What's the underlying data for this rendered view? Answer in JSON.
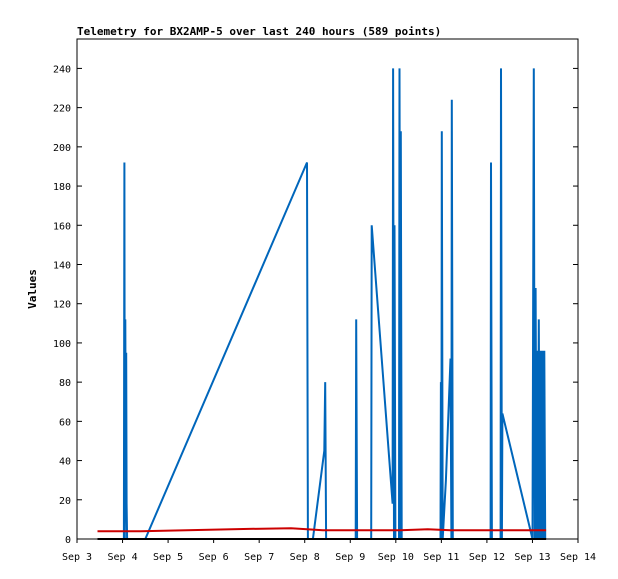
{
  "chart_data": {
    "type": "line",
    "title": "Telemetry for BX2AMP-5 over last 240 hours (589 points)",
    "xlabel": "",
    "ylabel": "Values",
    "xlim": [
      3.0,
      14.0
    ],
    "ylim": [
      0,
      255
    ],
    "x_unit": "day of September",
    "x_ticks": [
      {
        "value": 3,
        "label": "Sep 3"
      },
      {
        "value": 4,
        "label": "Sep 4"
      },
      {
        "value": 5,
        "label": "Sep 5"
      },
      {
        "value": 6,
        "label": "Sep 6"
      },
      {
        "value": 7,
        "label": "Sep 7"
      },
      {
        "value": 8,
        "label": "Sep 8"
      },
      {
        "value": 9,
        "label": "Sep 9"
      },
      {
        "value": 10,
        "label": "Sep 10"
      },
      {
        "value": 11,
        "label": "Sep 11"
      },
      {
        "value": 12,
        "label": "Sep 12"
      },
      {
        "value": 13,
        "label": "Sep 13"
      },
      {
        "value": 14,
        "label": "Sep 14"
      }
    ],
    "y_ticks": [
      0,
      20,
      40,
      60,
      80,
      100,
      120,
      140,
      160,
      180,
      200,
      220,
      240
    ],
    "legend": "none",
    "series": [
      {
        "color": "#0066bb",
        "points": [
          [
            4.03,
            0
          ],
          [
            4.04,
            192
          ],
          [
            4.05,
            0
          ],
          [
            4.06,
            112
          ],
          [
            4.07,
            55
          ],
          [
            4.08,
            95
          ],
          [
            4.09,
            18
          ],
          [
            4.1,
            0
          ],
          [
            4.5,
            0
          ],
          [
            8.05,
            192
          ],
          [
            8.07,
            0
          ],
          [
            8.18,
            0
          ],
          [
            8.43,
            45
          ],
          [
            8.45,
            80
          ],
          [
            8.47,
            0
          ],
          [
            9.12,
            0
          ],
          [
            9.13,
            112
          ],
          [
            9.15,
            0
          ],
          [
            9.46,
            0
          ],
          [
            9.47,
            160
          ],
          [
            9.93,
            18
          ],
          [
            9.94,
            240
          ],
          [
            9.96,
            0
          ],
          [
            9.97,
            160
          ],
          [
            9.99,
            0
          ],
          [
            10.07,
            0
          ],
          [
            10.08,
            240
          ],
          [
            10.1,
            0
          ],
          [
            10.11,
            208
          ],
          [
            10.13,
            0
          ],
          [
            10.98,
            0
          ],
          [
            10.99,
            80
          ],
          [
            11.0,
            0
          ],
          [
            11.01,
            208
          ],
          [
            11.03,
            0
          ],
          [
            11.1,
            30
          ],
          [
            11.2,
            92
          ],
          [
            11.22,
            0
          ],
          [
            11.23,
            224
          ],
          [
            11.25,
            0
          ],
          [
            12.08,
            0
          ],
          [
            12.09,
            192
          ],
          [
            12.11,
            0
          ],
          [
            12.3,
            0
          ],
          [
            12.31,
            240
          ],
          [
            12.33,
            0
          ],
          [
            12.34,
            64
          ],
          [
            13.0,
            0
          ],
          [
            13.03,
            240
          ],
          [
            13.05,
            0
          ],
          [
            13.07,
            128
          ],
          [
            13.09,
            0
          ],
          [
            13.1,
            96
          ],
          [
            13.12,
            0
          ],
          [
            13.14,
            112
          ],
          [
            13.16,
            0
          ],
          [
            13.18,
            96
          ],
          [
            13.2,
            0
          ],
          [
            13.22,
            96
          ],
          [
            13.24,
            0
          ],
          [
            13.26,
            96
          ],
          [
            13.28,
            0
          ]
        ]
      },
      {
        "color": "#cc0000",
        "points": [
          [
            3.45,
            4
          ],
          [
            4.4,
            4
          ],
          [
            5.4,
            4.5
          ],
          [
            6.4,
            5
          ],
          [
            7.7,
            5.5
          ],
          [
            8.05,
            5
          ],
          [
            8.4,
            4.5
          ],
          [
            9.0,
            4.5
          ],
          [
            9.6,
            4.5
          ],
          [
            10.1,
            4.5
          ],
          [
            10.7,
            5
          ],
          [
            11.2,
            4.5
          ],
          [
            12.0,
            4.5
          ],
          [
            12.5,
            4.5
          ],
          [
            13.0,
            4.5
          ],
          [
            13.3,
            4.5
          ]
        ]
      },
      {
        "color": "#000000",
        "points": [
          [
            3.45,
            0
          ],
          [
            13.3,
            0
          ]
        ]
      }
    ]
  }
}
